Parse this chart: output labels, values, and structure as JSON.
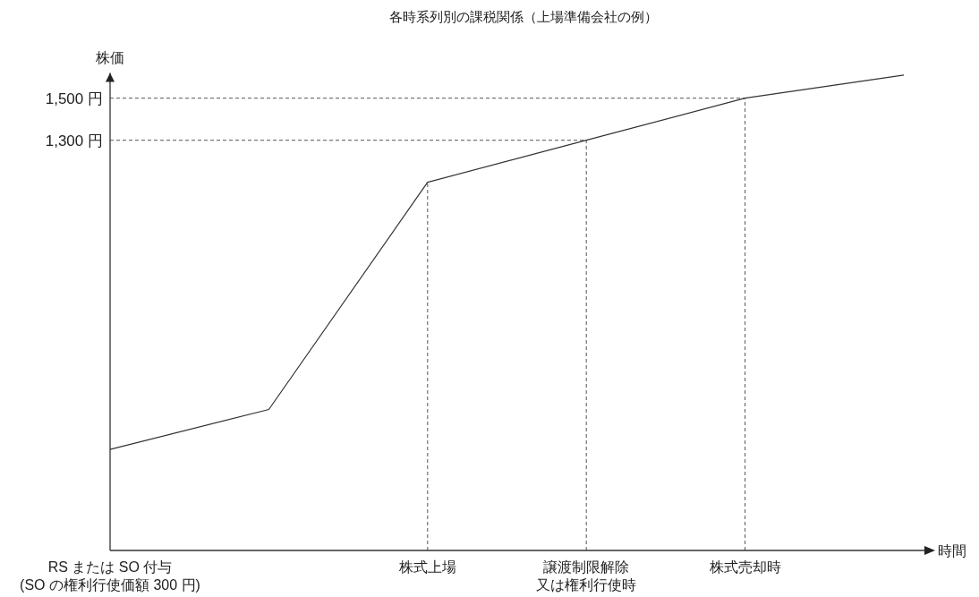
{
  "chart_data": {
    "type": "line",
    "title": "各時系列別の課税関係（上場準備会社の例）",
    "xlabel": "時間",
    "ylabel": "株価",
    "categories": [
      "RS または SO 付与(SO の権利行使価額 300 円)",
      null,
      "株式上場",
      "譲渡制限解除又は権利行使時",
      "株式売却時",
      null
    ],
    "series": [
      {
        "color": "#333333",
        "values": [
          -170,
          20,
          1100,
          1300,
          1500,
          1610
        ]
      }
    ],
    "ylim": [
      -650,
      1620
    ],
    "yticks": [
      {
        "value": 1300,
        "label": "1,300 円"
      },
      {
        "value": 1500,
        "label": "1,500 円"
      }
    ],
    "ref_lines": [
      {
        "axis": "y",
        "value": 1500,
        "line_style": "dashed",
        "color": "#555555"
      },
      {
        "axis": "y",
        "value": 1300,
        "line_style": "dashed",
        "color": "#555555"
      },
      {
        "axis": "x",
        "value": "株式上場",
        "line_style": "dashed",
        "color": "#555555"
      },
      {
        "axis": "x",
        "value": "譲渡制限解除又は権利行使時",
        "line_style": "dashed",
        "color": "#555555"
      },
      {
        "axis": "x",
        "value": "株式売却時",
        "line_style": "dashed",
        "color": "#555555"
      }
    ],
    "marker": "none",
    "line_style": "solid",
    "grid": false
  }
}
